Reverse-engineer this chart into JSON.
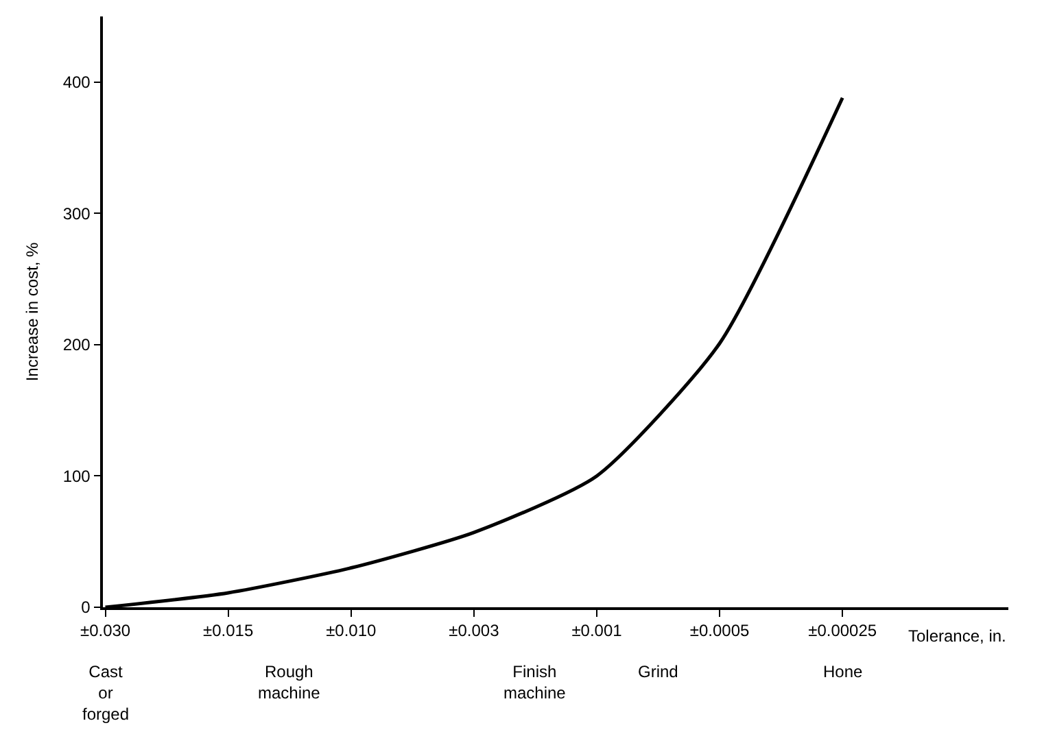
{
  "chart_data": {
    "type": "line",
    "xlabel": "Tolerance, in.",
    "ylabel": "Increase in cost, %",
    "categories": [
      "±0.030",
      "±0.015",
      "±0.010",
      "±0.003",
      "±0.001",
      "±0.0005",
      "±0.00025"
    ],
    "series": [
      {
        "color": "#000000",
        "values": [
          0,
          11,
          30,
          57,
          100,
          201,
          388
        ]
      }
    ],
    "ylim": [
      0,
      450
    ],
    "yticks": [
      0,
      100,
      200,
      300,
      400
    ],
    "marker": "none",
    "line_style": "solid",
    "annotations": [
      "Cast\nor\nforged",
      "Rough\nmachine",
      "Finish\nmachine",
      "Grind",
      "Hone"
    ]
  }
}
